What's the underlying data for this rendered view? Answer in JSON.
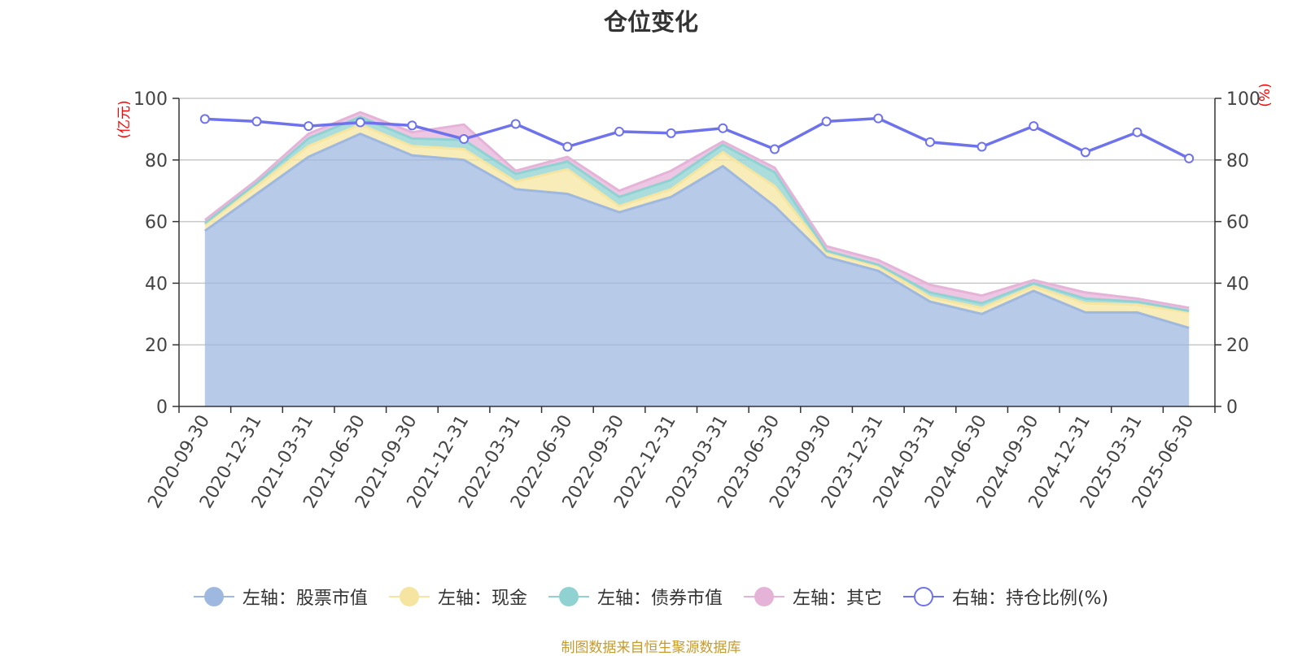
{
  "title": "仓位变化",
  "source": "制图数据来自恒生聚源数据库",
  "colors": {
    "stock": "#9fb8e0",
    "cash": "#f6e5a0",
    "bond": "#90d2d2",
    "other": "#e6b3d8",
    "ratio": "#6e72ec",
    "axis_unit": "#ff0000"
  },
  "chart_data": {
    "type": "area",
    "title": "仓位变化",
    "stacked": true,
    "x": [
      "2020-09-30",
      "2020-12-31",
      "2021-03-31",
      "2021-06-30",
      "2021-09-30",
      "2021-12-31",
      "2022-03-31",
      "2022-06-30",
      "2022-09-30",
      "2022-12-31",
      "2023-03-31",
      "2023-06-30",
      "2023-09-30",
      "2023-12-31",
      "2024-03-31",
      "2024-06-30",
      "2024-09-30",
      "2024-12-31",
      "2025-03-31",
      "2025-06-30"
    ],
    "y_left": {
      "label": "(亿元)",
      "ylim": [
        0,
        100
      ],
      "ticks": [
        0,
        20,
        40,
        60,
        80,
        100
      ]
    },
    "y_right": {
      "label": "(%)",
      "ylim": [
        0,
        100
      ],
      "ticks": [
        0,
        20,
        40,
        60,
        80,
        100
      ]
    },
    "grid": true,
    "legend_position": "bottom",
    "series": [
      {
        "name": "左轴：股票市值",
        "axis": "left",
        "type": "area",
        "values": [
          57.0,
          69.0,
          81.0,
          88.5,
          81.5,
          80.0,
          70.5,
          69.0,
          63.0,
          68.0,
          78.0,
          65.0,
          48.5,
          44.0,
          34.0,
          30.0,
          37.5,
          30.5,
          30.5,
          25.5
        ]
      },
      {
        "name": "左轴：现金",
        "axis": "left",
        "type": "area",
        "values": [
          2.0,
          2.5,
          3.5,
          3.0,
          3.0,
          3.5,
          2.5,
          8.0,
          2.0,
          2.5,
          4.5,
          6.5,
          1.5,
          1.5,
          1.5,
          2.0,
          1.5,
          3.0,
          2.5,
          5.0
        ]
      },
      {
        "name": "左轴：债券市值",
        "axis": "left",
        "type": "area",
        "values": [
          0.5,
          1.0,
          2.5,
          2.5,
          2.5,
          3.0,
          2.5,
          2.5,
          3.0,
          3.0,
          2.5,
          4.5,
          0.5,
          0.5,
          1.5,
          1.5,
          1.0,
          1.5,
          1.0,
          0.5
        ]
      },
      {
        "name": "左轴：其它",
        "axis": "left",
        "type": "area",
        "values": [
          1.0,
          1.0,
          1.5,
          1.5,
          2.0,
          5.0,
          1.0,
          1.5,
          2.0,
          3.0,
          1.0,
          1.5,
          1.5,
          1.5,
          2.5,
          2.5,
          1.0,
          2.0,
          1.0,
          1.0
        ]
      },
      {
        "name": "右轴：持仓比例(%)",
        "axis": "right",
        "type": "line",
        "values": [
          93.3,
          92.5,
          91.0,
          92.2,
          91.2,
          86.8,
          91.7,
          84.3,
          89.2,
          88.7,
          90.3,
          83.5,
          92.5,
          93.5,
          85.8,
          84.3,
          91.0,
          82.5,
          89.0,
          80.5
        ]
      }
    ]
  }
}
